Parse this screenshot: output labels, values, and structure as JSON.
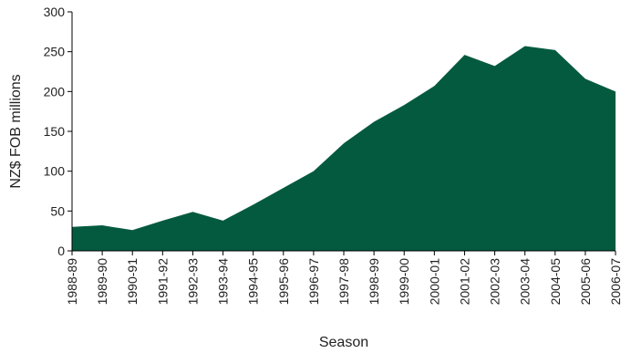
{
  "chart_data": {
    "type": "area",
    "xlabel": "Season",
    "ylabel": "NZ$ FOB millions",
    "ylim": [
      0,
      300
    ],
    "yticks": [
      0,
      50,
      100,
      150,
      200,
      250,
      300
    ],
    "grid": false,
    "categories": [
      "1988-89",
      "1989-90",
      "1990-91",
      "1991-92",
      "1992-93",
      "1993-94",
      "1994-95",
      "1995-96",
      "1996-97",
      "1997-98",
      "1998-99",
      "1999-00",
      "2000-01",
      "2001-02",
      "2002-03",
      "2003-04",
      "2004-05",
      "2005-06",
      "2006-07"
    ],
    "series": [
      {
        "values": [
          30,
          32,
          26,
          38,
          49,
          38,
          58,
          79,
          100,
          135,
          162,
          183,
          207,
          246,
          232,
          257,
          252,
          216,
          200
        ],
        "color": "#045a3f"
      }
    ]
  }
}
